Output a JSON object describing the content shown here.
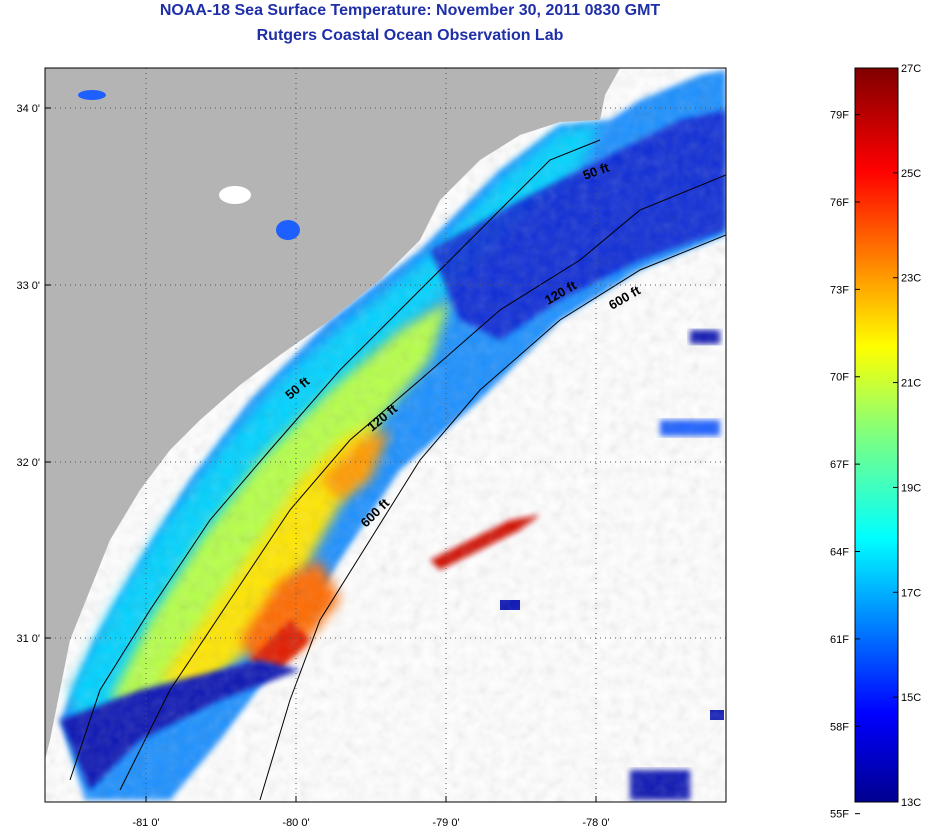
{
  "title": "NOAA-18 Sea Surface Temperature:  November 30, 2011 0830 GMT",
  "subtitle": "Rutgers Coastal Ocean Observation Lab",
  "map": {
    "lon_ticks": [
      "-81 0'",
      "-80 0'",
      "-79 0'",
      "-78 0'"
    ],
    "lat_ticks": [
      "34 0'",
      "33 0'",
      "32 0'",
      "31 0'"
    ],
    "grid": "dotted",
    "land_color": "#b4b4b4",
    "no_data_color": "#ffffff",
    "contour_labels": [
      "50 ft",
      "120 ft",
      "600 ft",
      "50 ft",
      "120 ft",
      "600 ft"
    ]
  },
  "colorbar": {
    "min_c": 13,
    "max_c": 27,
    "celsius_ticks": [
      "27C",
      "25C",
      "23C",
      "21C",
      "19C",
      "17C",
      "15C",
      "13C"
    ],
    "fahrenheit_ticks": [
      "79F",
      "76F",
      "73F",
      "70F",
      "67F",
      "64F",
      "61F",
      "58F",
      "55F"
    ]
  }
}
